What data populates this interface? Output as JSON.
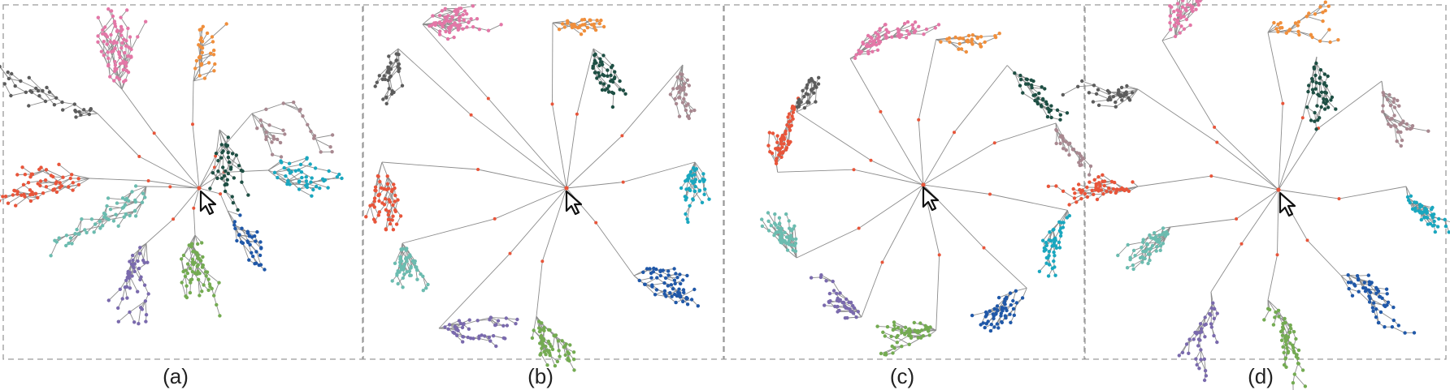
{
  "figure": {
    "panels": [
      {
        "id": "a",
        "label": "(a)",
        "layout": "tree"
      },
      {
        "id": "b",
        "label": "(b)",
        "layout": "square"
      },
      {
        "id": "c",
        "label": "(c)",
        "layout": "circle"
      },
      {
        "id": "d",
        "label": "(d)",
        "layout": "blend"
      }
    ],
    "clusters": [
      {
        "id": "pink",
        "color": "#e377a7"
      },
      {
        "id": "orange",
        "color": "#f08f3c"
      },
      {
        "id": "darkgreen",
        "color": "#1e4f44"
      },
      {
        "id": "mauve",
        "color": "#a88890"
      },
      {
        "id": "cyan",
        "color": "#1aa7bf"
      },
      {
        "id": "blue",
        "color": "#2058a8"
      },
      {
        "id": "green",
        "color": "#74ab52"
      },
      {
        "id": "purple",
        "color": "#7a6aad"
      },
      {
        "id": "teal",
        "color": "#6cbcb0"
      },
      {
        "id": "red",
        "color": "#e8553a"
      },
      {
        "id": "gray",
        "color": "#5c5c5c"
      }
    ],
    "colors": {
      "edge": "#8c8c8c",
      "frame": "#9a9a9a",
      "caption": "#222222",
      "root": "#e8553a"
    },
    "pointer_icon": "cursor-arrow-icon"
  }
}
